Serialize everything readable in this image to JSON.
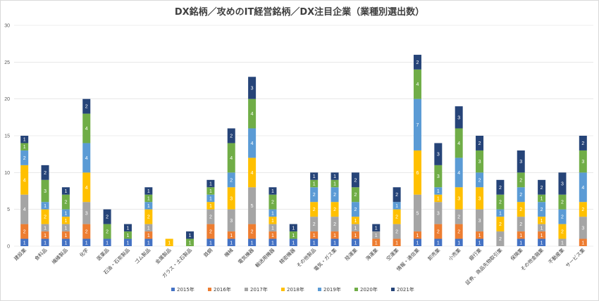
{
  "chart_data": {
    "type": "bar",
    "stacked": true,
    "title": "DX銘柄／攻めのIT経営銘柄／DX注目企業（業種別選出数）",
    "ylim": [
      0,
      30
    ],
    "yticks": [
      0,
      5,
      10,
      15,
      20,
      25,
      30
    ],
    "grid": true,
    "legend_position": "bottom",
    "categories": [
      "建設業",
      "食料品",
      "繊維製品",
      "化学",
      "医薬品",
      "石油・石炭製品",
      "ゴム製品",
      "金属製品",
      "ガラス・土石製品",
      "鉄鋼",
      "機械",
      "電気機器",
      "輸送用機器",
      "精密機器",
      "その他製品",
      "電気・ガス業",
      "陸運業",
      "海運業",
      "空運業",
      "情報・通信業",
      "卸売業",
      "小売業",
      "銀行業",
      "証券、商品先物取引業",
      "保険業",
      "その他金融業",
      "不動産業",
      "サービス業"
    ],
    "series": [
      {
        "name": "2015年",
        "color": "#4472c4",
        "values": [
          1,
          1,
          1,
          1,
          1,
          1,
          1,
          0,
          0,
          1,
          1,
          1,
          1,
          1,
          1,
          1,
          1,
          0,
          0,
          1,
          1,
          1,
          1,
          0,
          1,
          1,
          0,
          0
        ]
      },
      {
        "name": "2016年",
        "color": "#ed7d31",
        "values": [
          2,
          1,
          1,
          2,
          0,
          0,
          1,
          0,
          0,
          2,
          1,
          2,
          1,
          0,
          1,
          1,
          1,
          1,
          1,
          1,
          2,
          2,
          1,
          0,
          1,
          1,
          0,
          1
        ]
      },
      {
        "name": "2017年",
        "color": "#a5a5a5",
        "values": [
          4,
          1,
          1,
          3,
          0,
          0,
          1,
          0,
          0,
          2,
          3,
          5,
          1,
          0,
          2,
          2,
          1,
          1,
          2,
          5,
          3,
          2,
          3,
          2,
          2,
          1,
          1,
          3
        ]
      },
      {
        "name": "2018年",
        "color": "#ffc000",
        "values": [
          4,
          2,
          1,
          4,
          0,
          0,
          2,
          1,
          0,
          1,
          3,
          4,
          1,
          0,
          2,
          2,
          1,
          0,
          2,
          6,
          1,
          3,
          3,
          2,
          2,
          1,
          2,
          2
        ]
      },
      {
        "name": "2019年",
        "color": "#5b9bd5",
        "values": [
          2,
          1,
          1,
          4,
          0,
          0,
          1,
          0,
          0,
          1,
          2,
          4,
          1,
          0,
          2,
          2,
          2,
          0,
          1,
          7,
          1,
          4,
          2,
          1,
          2,
          2,
          2,
          4
        ]
      },
      {
        "name": "2020年",
        "color": "#70ad47",
        "values": [
          1,
          3,
          2,
          4,
          2,
          1,
          1,
          0,
          1,
          1,
          4,
          4,
          2,
          1,
          1,
          1,
          2,
          0,
          0,
          4,
          3,
          4,
          3,
          2,
          2,
          1,
          2,
          3
        ]
      },
      {
        "name": "2021年",
        "color": "#264478",
        "values": [
          1,
          2,
          1,
          2,
          2,
          1,
          1,
          0,
          1,
          1,
          2,
          3,
          1,
          1,
          1,
          1,
          2,
          1,
          2,
          2,
          3,
          3,
          2,
          2,
          3,
          2,
          3,
          2
        ]
      }
    ]
  }
}
